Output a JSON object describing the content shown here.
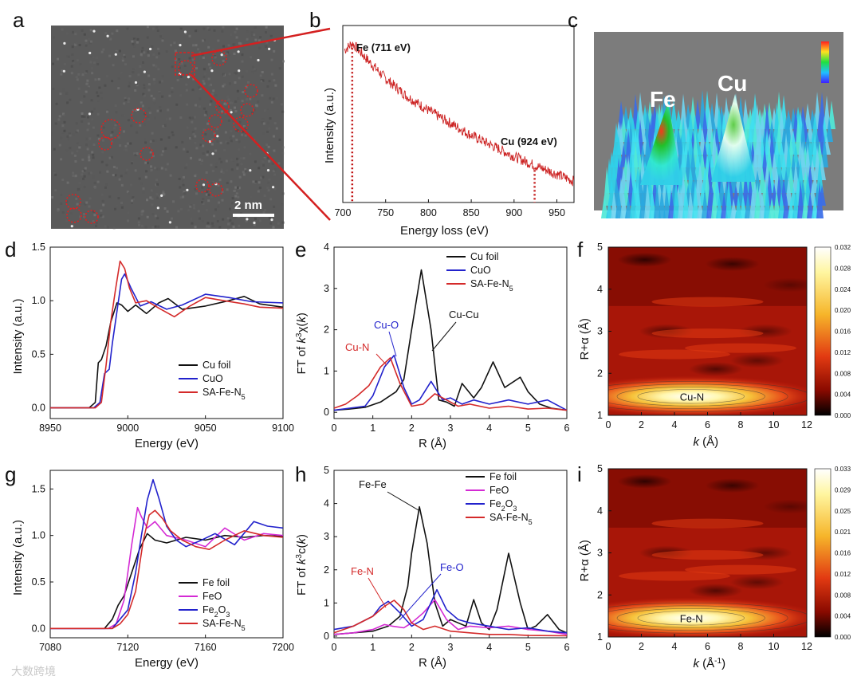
{
  "panel_labels": [
    "a",
    "b",
    "c",
    "d",
    "e",
    "f",
    "g",
    "h",
    "i"
  ],
  "watermark": "大数跨境",
  "panel_a": {
    "scalebar": "2 nm"
  },
  "panel_c": {
    "labels": [
      "Fe",
      "Cu"
    ]
  },
  "colors": {
    "black": "#111111",
    "blue": "#2222cc",
    "red": "#d42a2a",
    "magenta": "#d42ad4",
    "eels": "#cc2222"
  },
  "chart_data": [
    {
      "id": "b",
      "type": "line",
      "xlabel": "Energy loss (eV)",
      "ylabel": "Intensity (a.u.)",
      "xlim": [
        700,
        970
      ],
      "xticks": [
        700,
        750,
        800,
        850,
        900,
        950
      ],
      "annotations": [
        "Fe (711 eV)",
        "Cu (924 eV)"
      ],
      "markers_x": [
        711,
        924
      ],
      "series": [
        {
          "x": [
            702,
            711,
            730,
            750,
            775,
            800,
            825,
            850,
            875,
            900,
            924,
            950,
            970
          ],
          "y": [
            0.86,
            0.9,
            0.8,
            0.7,
            0.6,
            0.52,
            0.45,
            0.38,
            0.32,
            0.26,
            0.21,
            0.16,
            0.12
          ]
        }
      ]
    },
    {
      "id": "d",
      "type": "line",
      "xlabel": "Energy (eV)",
      "ylabel": "Intensity (a.u.)",
      "xlim": [
        8950,
        9100
      ],
      "ylim": [
        -0.1,
        1.5
      ],
      "xticks": [
        8950,
        9000,
        9050,
        9100
      ],
      "yticks": [
        0.0,
        0.5,
        1.0,
        1.5
      ],
      "legend": [
        "Cu foil",
        "CuO",
        "SA-Fe-N5"
      ],
      "series": [
        {
          "name": "Cu foil",
          "x": [
            8950,
            8975,
            8979,
            8981,
            8983,
            8986,
            8989,
            8993,
            8996,
            9000,
            9005,
            9012,
            9020,
            9026,
            9035,
            9050,
            9065,
            9075,
            9085,
            9100
          ],
          "y": [
            0.0,
            0.0,
            0.05,
            0.42,
            0.45,
            0.58,
            0.8,
            0.98,
            0.96,
            0.9,
            0.96,
            0.88,
            0.98,
            1.02,
            0.92,
            0.95,
            1.0,
            1.04,
            0.97,
            0.94
          ]
        },
        {
          "name": "CuO",
          "x": [
            8950,
            8978,
            8982,
            8985,
            8988,
            8990,
            8993,
            8996,
            8998,
            9002,
            9008,
            9015,
            9025,
            9035,
            9050,
            9065,
            9080,
            9100
          ],
          "y": [
            0.0,
            0.0,
            0.05,
            0.32,
            0.36,
            0.6,
            0.9,
            1.2,
            1.25,
            1.12,
            0.95,
            0.99,
            0.92,
            0.96,
            1.06,
            1.03,
            0.99,
            0.98
          ]
        },
        {
          "name": "SA-Fe-N5",
          "x": [
            8950,
            8979,
            8983,
            8986,
            8989,
            8992,
            8995,
            8998,
            9001,
            9005,
            9012,
            9020,
            9030,
            9040,
            9050,
            9062,
            9075,
            9085,
            9100
          ],
          "y": [
            0.0,
            0.0,
            0.05,
            0.4,
            0.8,
            1.1,
            1.37,
            1.3,
            1.12,
            0.98,
            1.0,
            0.93,
            0.85,
            0.95,
            1.03,
            1.0,
            0.97,
            0.94,
            0.93
          ]
        }
      ]
    },
    {
      "id": "e",
      "type": "line",
      "xlabel": "R (Å)",
      "ylabel": "FT of k3χ(k)",
      "xlim": [
        0,
        6
      ],
      "ylim": [
        -0.15,
        4
      ],
      "xticks": [
        0,
        1,
        2,
        3,
        4,
        5,
        6
      ],
      "yticks": [
        0,
        1,
        2,
        3,
        4
      ],
      "legend": [
        "Cu foil",
        "CuO",
        "SA-Fe-N5"
      ],
      "annotations": [
        "Cu-Cu",
        "Cu-O",
        "Cu-N"
      ],
      "series": [
        {
          "name": "Cu foil",
          "x": [
            0,
            0.4,
            0.8,
            1.2,
            1.6,
            1.8,
            2.0,
            2.25,
            2.5,
            2.7,
            2.9,
            3.1,
            3.3,
            3.6,
            3.8,
            4.1,
            4.4,
            4.8,
            5.0,
            5.3,
            5.6,
            6.0
          ],
          "y": [
            0.05,
            0.08,
            0.12,
            0.25,
            0.5,
            0.8,
            2.0,
            3.45,
            2.0,
            0.3,
            0.25,
            0.15,
            0.7,
            0.35,
            0.6,
            1.22,
            0.6,
            0.85,
            0.5,
            0.2,
            0.1,
            0.05
          ]
        },
        {
          "name": "CuO",
          "x": [
            0,
            0.4,
            0.8,
            1.0,
            1.3,
            1.55,
            1.8,
            2.0,
            2.2,
            2.5,
            2.8,
            3.0,
            3.3,
            3.6,
            4.0,
            4.5,
            5.0,
            5.5,
            6.0
          ],
          "y": [
            0.05,
            0.1,
            0.15,
            0.4,
            1.1,
            1.38,
            0.6,
            0.2,
            0.3,
            0.75,
            0.3,
            0.35,
            0.2,
            0.3,
            0.2,
            0.3,
            0.2,
            0.3,
            0.05
          ]
        },
        {
          "name": "SA-Fe-N5",
          "x": [
            0,
            0.3,
            0.6,
            0.9,
            1.2,
            1.45,
            1.7,
            2.0,
            2.3,
            2.6,
            2.9,
            3.2,
            3.5,
            4.0,
            4.5,
            5.0,
            5.5,
            6.0
          ],
          "y": [
            0.1,
            0.2,
            0.4,
            0.65,
            1.1,
            1.32,
            0.7,
            0.15,
            0.2,
            0.45,
            0.3,
            0.15,
            0.2,
            0.1,
            0.15,
            0.08,
            0.1,
            0.05
          ]
        }
      ]
    },
    {
      "id": "f",
      "type": "heatmap",
      "xlabel": "k (Å)",
      "ylabel": "R+α (Å)",
      "xlim": [
        0,
        12
      ],
      "ylim": [
        1,
        5
      ],
      "xticks": [
        0,
        2,
        4,
        6,
        8,
        10,
        12
      ],
      "yticks": [
        1,
        2,
        3,
        4,
        5
      ],
      "peak_label": "Cu-N",
      "peak": {
        "k": 5.0,
        "R": 1.45
      },
      "colorbar_ticks": [
        "0.032",
        "0.028",
        "0.024",
        "0.020",
        "0.016",
        "0.012",
        "0.008",
        "0.004",
        "0.000"
      ]
    },
    {
      "id": "g",
      "type": "line",
      "xlabel": "Energy (eV)",
      "ylabel": "Intensity (a.u.)",
      "xlim": [
        7080,
        7200
      ],
      "ylim": [
        -0.1,
        1.7
      ],
      "xticks": [
        7080,
        7120,
        7160,
        7200
      ],
      "yticks": [
        0.0,
        0.5,
        1.0,
        1.5
      ],
      "legend": [
        "Fe foil",
        "FeO",
        "Fe2O3",
        "SA-Fe-N5"
      ],
      "series": [
        {
          "name": "Fe foil",
          "x": [
            7080,
            7108,
            7112,
            7115,
            7118,
            7122,
            7126,
            7130,
            7134,
            7140,
            7150,
            7160,
            7170,
            7180,
            7190,
            7200
          ],
          "y": [
            0.0,
            0.0,
            0.1,
            0.25,
            0.35,
            0.6,
            0.85,
            1.02,
            0.95,
            0.92,
            0.98,
            0.95,
            1.0,
            0.98,
            1.0,
            0.99
          ]
        },
        {
          "name": "FeO",
          "x": [
            7080,
            7110,
            7114,
            7118,
            7122,
            7125,
            7127,
            7130,
            7134,
            7140,
            7150,
            7160,
            7170,
            7180,
            7190,
            7200
          ],
          "y": [
            0.0,
            0.0,
            0.05,
            0.3,
            0.9,
            1.3,
            1.2,
            1.08,
            1.15,
            1.0,
            0.95,
            0.88,
            1.08,
            0.95,
            1.02,
            1.0
          ]
        },
        {
          "name": "Fe2O3",
          "x": [
            7080,
            7112,
            7116,
            7120,
            7124,
            7127,
            7130,
            7133,
            7136,
            7140,
            7145,
            7150,
            7158,
            7165,
            7175,
            7185,
            7192,
            7200
          ],
          "y": [
            0.0,
            0.0,
            0.1,
            0.2,
            0.6,
            1.0,
            1.38,
            1.6,
            1.4,
            1.1,
            0.95,
            0.88,
            0.95,
            1.02,
            0.9,
            1.15,
            1.1,
            1.08
          ]
        },
        {
          "name": "SA-Fe-N5",
          "x": [
            7080,
            7112,
            7116,
            7120,
            7124,
            7128,
            7131,
            7134,
            7138,
            7142,
            7148,
            7155,
            7162,
            7170,
            7180,
            7190,
            7200
          ],
          "y": [
            0.0,
            0.0,
            0.05,
            0.15,
            0.4,
            0.95,
            1.22,
            1.27,
            1.18,
            1.05,
            0.95,
            0.88,
            0.85,
            0.95,
            1.05,
            1.0,
            0.98
          ]
        }
      ]
    },
    {
      "id": "h",
      "type": "line",
      "xlabel": "R (Å)",
      "ylabel": "FT of k3c(k)",
      "xlim": [
        0,
        6
      ],
      "ylim": [
        -0.05,
        5
      ],
      "xticks": [
        0,
        1,
        2,
        3,
        4,
        5,
        6
      ],
      "yticks": [
        0,
        1,
        2,
        3,
        4,
        5
      ],
      "legend": [
        "Fe foil",
        "FeO",
        "Fe2O3",
        "SA-Fe-N5"
      ],
      "annotations": [
        "Fe-Fe",
        "Fe-N",
        "Fe-O"
      ],
      "series": [
        {
          "name": "Fe foil",
          "x": [
            0,
            0.5,
            1.0,
            1.4,
            1.7,
            1.9,
            2.0,
            2.2,
            2.4,
            2.6,
            2.8,
            3.0,
            3.2,
            3.4,
            3.6,
            3.8,
            4.0,
            4.2,
            4.5,
            4.8,
            5.0,
            5.2,
            5.5,
            5.8,
            6.0
          ],
          "y": [
            0.05,
            0.1,
            0.15,
            0.3,
            0.6,
            1.5,
            2.5,
            3.9,
            2.8,
            1.0,
            0.3,
            0.5,
            0.4,
            0.3,
            1.1,
            0.4,
            0.2,
            0.8,
            2.5,
            1.0,
            0.2,
            0.3,
            0.65,
            0.2,
            0.1
          ]
        },
        {
          "name": "FeO",
          "x": [
            0,
            0.5,
            1.0,
            1.3,
            1.5,
            1.8,
            2.0,
            2.3,
            2.6,
            2.9,
            3.2,
            3.5,
            4.0,
            4.5,
            5.0,
            5.5,
            6.0
          ],
          "y": [
            0.05,
            0.1,
            0.2,
            0.35,
            0.3,
            0.25,
            0.4,
            0.7,
            1.1,
            0.5,
            0.2,
            0.3,
            0.25,
            0.3,
            0.2,
            0.15,
            0.05
          ]
        },
        {
          "name": "Fe2O3",
          "x": [
            0,
            0.5,
            1.0,
            1.2,
            1.4,
            1.7,
            2.0,
            2.3,
            2.65,
            2.9,
            3.2,
            3.5,
            4.0,
            4.5,
            5.0,
            5.5,
            6.0
          ],
          "y": [
            0.2,
            0.3,
            0.6,
            0.9,
            1.05,
            0.7,
            0.3,
            0.5,
            1.4,
            0.8,
            0.5,
            0.4,
            0.3,
            0.2,
            0.25,
            0.15,
            0.1
          ]
        },
        {
          "name": "SA-Fe-N5",
          "x": [
            0,
            0.5,
            1.0,
            1.3,
            1.55,
            1.8,
            2.0,
            2.3,
            2.6,
            3.0,
            3.5,
            4.0,
            4.5,
            5.0,
            6.0
          ],
          "y": [
            0.1,
            0.3,
            0.6,
            0.9,
            1.08,
            0.8,
            0.4,
            0.2,
            0.3,
            0.15,
            0.1,
            0.05,
            0.05,
            0.02,
            0.01
          ]
        }
      ]
    },
    {
      "id": "i",
      "type": "heatmap",
      "xlabel": "k (Å-1)",
      "ylabel": "R+α (Å)",
      "xlim": [
        0,
        12
      ],
      "ylim": [
        1,
        5
      ],
      "xticks": [
        0,
        2,
        4,
        6,
        8,
        10,
        12
      ],
      "yticks": [
        1,
        2,
        3,
        4,
        5
      ],
      "peak_label": "Fe-N",
      "peak": {
        "k": 5.0,
        "R": 1.45
      },
      "colorbar_ticks": [
        "0.033",
        "0.029",
        "0.025",
        "0.021",
        "0.016",
        "0.012",
        "0.008",
        "0.004",
        "0.000"
      ]
    }
  ]
}
